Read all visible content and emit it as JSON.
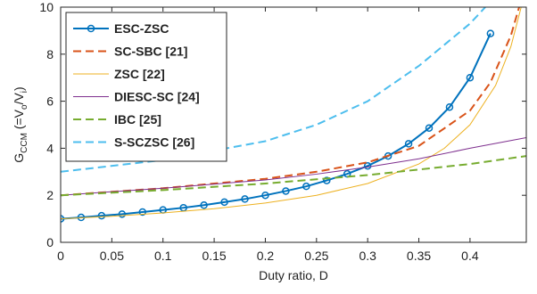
{
  "chart_data": {
    "type": "line",
    "xlabel": "Duty ratio, D",
    "ylabel_parts": [
      "G",
      "CCM",
      " (=V",
      "o",
      "/V",
      "i",
      ")"
    ],
    "xlim": [
      0,
      0.455
    ],
    "ylim": [
      0,
      10
    ],
    "xticks": [
      0,
      0.05,
      0.1,
      0.15,
      0.2,
      0.25,
      0.3,
      0.35,
      0.4
    ],
    "yticks": [
      0,
      2,
      4,
      6,
      8,
      10
    ],
    "legend": "upper left",
    "grid": false,
    "series": [
      {
        "name": "ESC-ZSC",
        "color": "#0072BD",
        "dash": false,
        "width": 2,
        "markers": true,
        "x": [
          0,
          0.02,
          0.04,
          0.06,
          0.08,
          0.1,
          0.12,
          0.14,
          0.16,
          0.18,
          0.2,
          0.22,
          0.24,
          0.26,
          0.28,
          0.3,
          0.32,
          0.34,
          0.36,
          0.38,
          0.4,
          0.42
        ],
        "values": [
          1,
          1.06,
          1.13,
          1.2,
          1.29,
          1.38,
          1.47,
          1.58,
          1.71,
          1.84,
          2,
          2.18,
          2.38,
          2.63,
          2.91,
          3.25,
          3.67,
          4.19,
          4.86,
          5.75,
          7,
          8.88
        ]
      },
      {
        "name": "SC-SBC [21]",
        "color": "#D95319",
        "dash": true,
        "width": 2,
        "markers": false,
        "x": [
          0,
          0.1,
          0.2,
          0.25,
          0.3,
          0.35,
          0.4,
          0.42,
          0.44,
          0.448
        ],
        "values": [
          2,
          2.3,
          2.7,
          3,
          3.4,
          4.1,
          5.6,
          6.8,
          8.8,
          10
        ]
      },
      {
        "name": "ZSC [22]",
        "color": "#EDB120",
        "dash": false,
        "width": 1,
        "markers": false,
        "x": [
          0,
          0.05,
          0.1,
          0.15,
          0.2,
          0.25,
          0.3,
          0.35,
          0.375,
          0.4,
          0.425,
          0.44,
          0.45
        ],
        "values": [
          1,
          1.11,
          1.25,
          1.43,
          1.67,
          2,
          2.5,
          3.33,
          4,
          5,
          6.67,
          8.33,
          10
        ]
      },
      {
        "name": "DIESC-SC [24]",
        "color": "#7E2F8E",
        "dash": false,
        "width": 1,
        "markers": false,
        "x": [
          0,
          0.1,
          0.2,
          0.25,
          0.3,
          0.35,
          0.4,
          0.455
        ],
        "values": [
          2,
          2.3,
          2.65,
          2.9,
          3.2,
          3.55,
          4,
          4.45
        ]
      },
      {
        "name": "IBC [25]",
        "color": "#77AC30",
        "dash": true,
        "width": 2,
        "markers": false,
        "x": [
          0,
          0.1,
          0.2,
          0.3,
          0.4,
          0.455
        ],
        "values": [
          2,
          2.22,
          2.5,
          2.86,
          3.33,
          3.67
        ]
      },
      {
        "name": "S-SCZSC [26]",
        "color": "#4DBEEE",
        "dash": true,
        "width": 2,
        "markers": false,
        "x": [
          0,
          0.1,
          0.2,
          0.25,
          0.3,
          0.35,
          0.4,
          0.415
        ],
        "values": [
          3,
          3.5,
          4.3,
          5,
          6,
          7.5,
          9.3,
          10
        ]
      }
    ]
  }
}
